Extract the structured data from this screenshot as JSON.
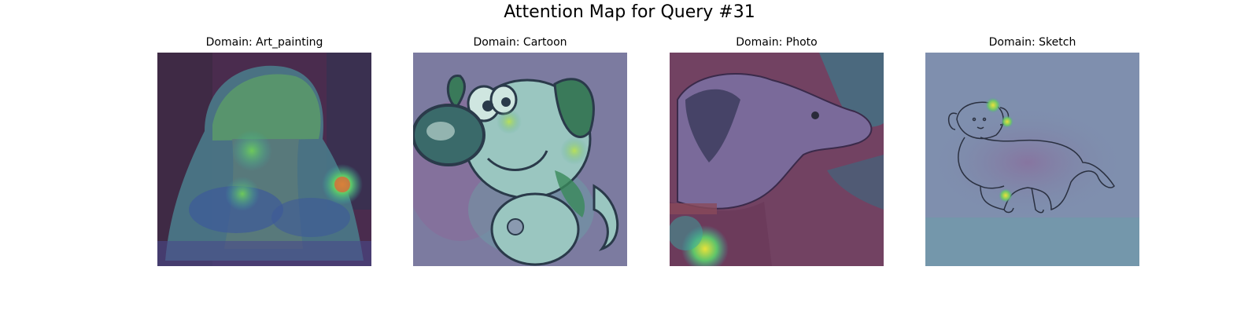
{
  "figure": {
    "title": "Attention Map for Query #31"
  },
  "panels": [
    {
      "title": "Domain: Art_painting",
      "subject": "dog in hat painting"
    },
    {
      "title": "Domain: Cartoon",
      "subject": "cartoon dog"
    },
    {
      "title": "Domain: Photo",
      "subject": "dog photo"
    },
    {
      "title": "Domain: Sketch",
      "subject": "dog sketch"
    }
  ],
  "colors": {
    "heat_low": "#6a4a8a",
    "heat_mid": "#3aa6a0",
    "heat_high": "#e8e23a"
  }
}
